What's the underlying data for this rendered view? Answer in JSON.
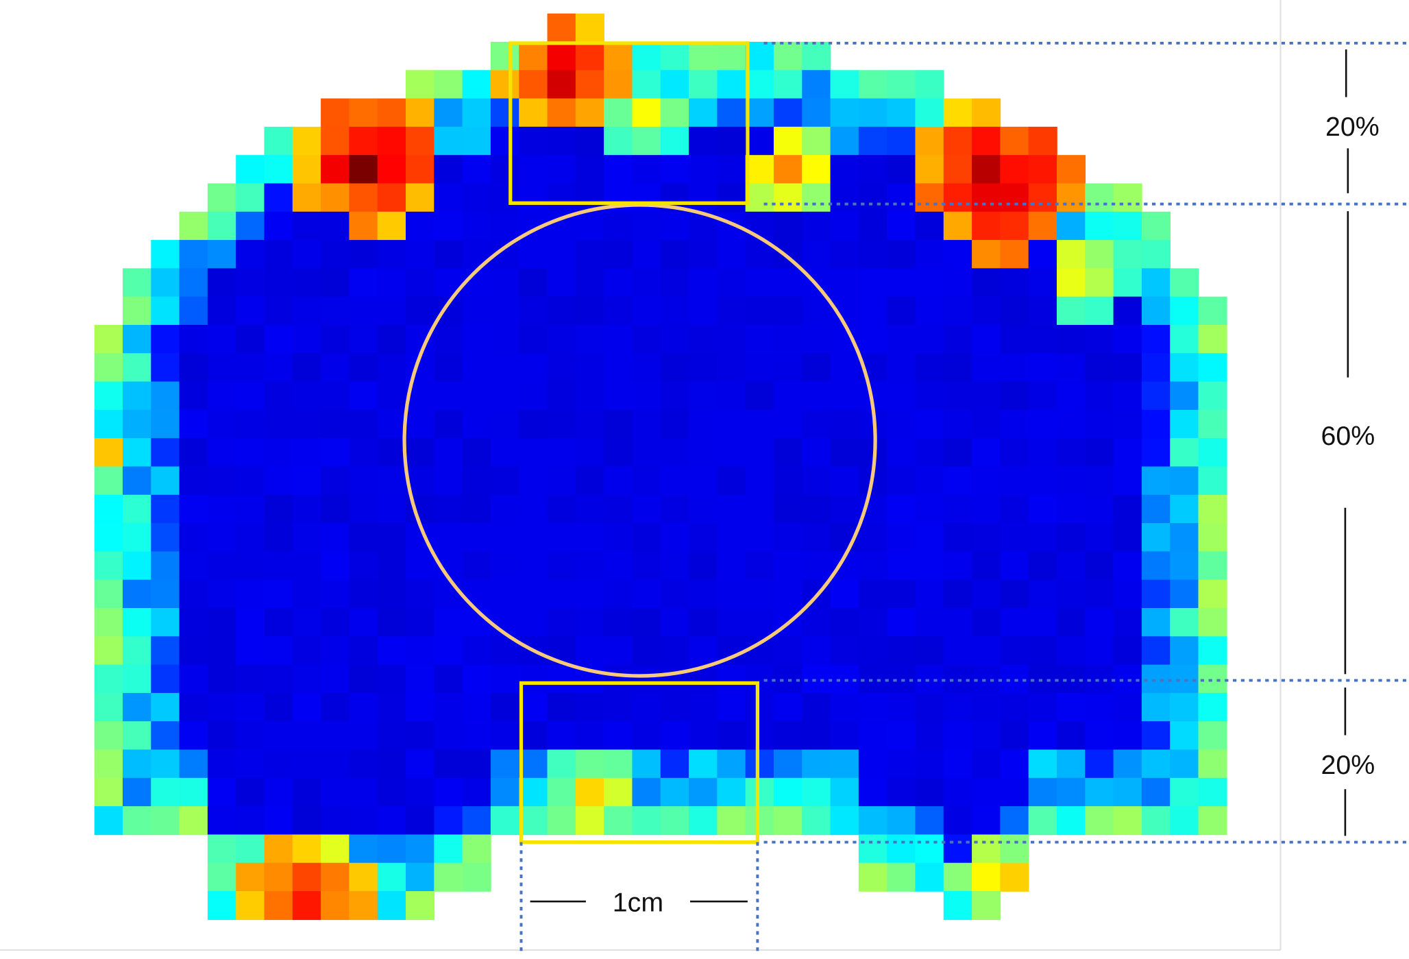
{
  "figure": {
    "labels": {
      "top_zone": "20%",
      "middle_zone": "60%",
      "bottom_zone": "20%",
      "scale_bar": "1cm"
    },
    "colors": {
      "region_box": "#f5e400",
      "circle": "#f7c97a",
      "dotted_line": "#4a72c4",
      "colormap": "jet"
    }
  }
}
